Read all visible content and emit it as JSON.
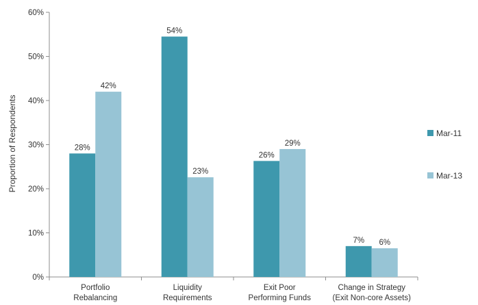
{
  "chart_data": {
    "type": "bar",
    "ylabel": "Proportion of Respondents",
    "ylim": [
      0,
      60
    ],
    "yticks": [
      "0%",
      "10%",
      "20%",
      "30%",
      "40%",
      "50%",
      "60%"
    ],
    "categories": [
      [
        "Portfolio",
        "Rebalancing"
      ],
      [
        "Liquidity",
        "Requirements"
      ],
      [
        "Exit Poor",
        "Performing Funds"
      ],
      [
        "Change in Strategy",
        "(Exit Non-core Assets)"
      ]
    ],
    "series": [
      {
        "name": "Mar-11",
        "color": "#3e98ad",
        "values": [
          28,
          54.5,
          26.3,
          7
        ],
        "labels": [
          "28%",
          "54%",
          "26%",
          "7%"
        ]
      },
      {
        "name": "Mar-13",
        "color": "#97c4d5",
        "values": [
          42,
          22.6,
          29,
          6.5
        ],
        "labels": [
          "42%",
          "23%",
          "29%",
          "6%"
        ]
      }
    ],
    "grid": false,
    "legend_position": "right"
  }
}
